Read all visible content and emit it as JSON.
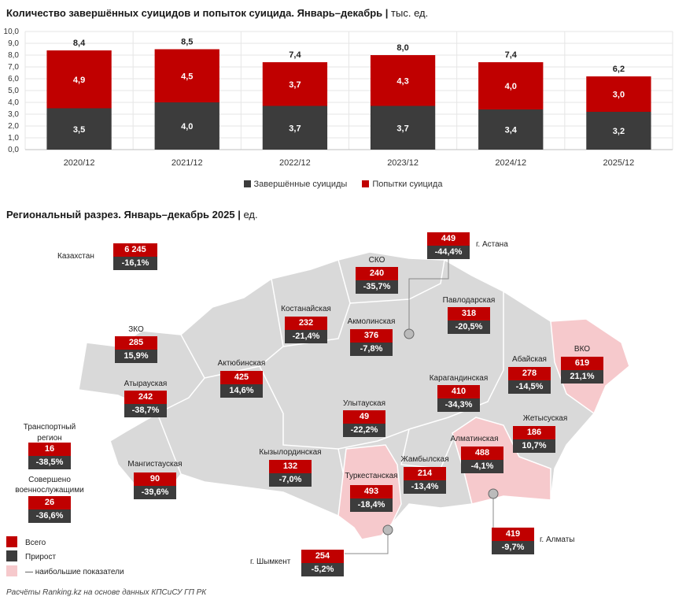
{
  "title1": "Количество завершённых суицидов и попыток суицида. Январь–декабрь",
  "title1_unit": "тыс. ед.",
  "title2": "Региональный разрез. Январь–декабрь 2025",
  "title2_unit": "ед.",
  "chart_data": {
    "type": "bar",
    "stacked": true,
    "categories": [
      "2020/12",
      "2021/12",
      "2022/12",
      "2023/12",
      "2024/12",
      "2025/12"
    ],
    "series": [
      {
        "name": "Завершённые суициды",
        "values": [
          3.5,
          4.0,
          3.7,
          3.7,
          3.4,
          3.2
        ],
        "color": "#3c3c3c"
      },
      {
        "name": "Попытки суицида",
        "values": [
          4.9,
          4.5,
          3.7,
          4.3,
          4.0,
          3.0
        ],
        "color": "#c00000"
      }
    ],
    "totals": [
      "8,4",
      "8,5",
      "7,4",
      "8,0",
      "7,4",
      "6,2"
    ],
    "ylim": [
      0,
      10
    ],
    "yticks": [
      "0,0",
      "1,0",
      "2,0",
      "3,0",
      "4,0",
      "5,0",
      "6,0",
      "7,0",
      "8,0",
      "9,0",
      "10,0"
    ],
    "grid": true,
    "legend_position": "bottom"
  },
  "regions": {
    "kazakhstan": {
      "name": "Казахстан",
      "total": "6 245",
      "growth": "-16,1%"
    },
    "zko": {
      "name": "ЗКО",
      "total": "285",
      "growth": "15,9%"
    },
    "atyrau": {
      "name": "Атырауская",
      "total": "242",
      "growth": "-38,7%"
    },
    "transport": {
      "name": "Транспортный регион",
      "total": "16",
      "growth": "-38,5%"
    },
    "military": {
      "name": "Совершено военнослужащими",
      "total": "26",
      "growth": "-36,6%"
    },
    "mangystau": {
      "name": "Мангистауская",
      "total": "90",
      "growth": "-39,6%"
    },
    "aktobe": {
      "name": "Актюбинская",
      "total": "425",
      "growth": "14,6%"
    },
    "kostanay": {
      "name": "Костанайская",
      "total": "232",
      "growth": "-21,4%"
    },
    "sko": {
      "name": "СКО",
      "total": "240",
      "growth": "-35,7%"
    },
    "akmola": {
      "name": "Акмолинская",
      "total": "376",
      "growth": "-7,8%"
    },
    "astana": {
      "name": "г. Астана",
      "total": "449",
      "growth": "-44,4%"
    },
    "pavlodar": {
      "name": "Павлодарская",
      "total": "318",
      "growth": "-20,5%"
    },
    "abay": {
      "name": "Абайская",
      "total": "278",
      "growth": "-14,5%"
    },
    "vko": {
      "name": "ВКО",
      "total": "619",
      "growth": "21,1%"
    },
    "karaganda": {
      "name": "Карагандинская",
      "total": "410",
      "growth": "-34,3%"
    },
    "ulytau": {
      "name": "Улытауская",
      "total": "49",
      "growth": "-22,2%"
    },
    "kyzylorda": {
      "name": "Кызылординская",
      "total": "132",
      "growth": "-7,0%"
    },
    "turkestan": {
      "name": "Туркестанская",
      "total": "493",
      "growth": "-18,4%"
    },
    "zhambyl": {
      "name": "Жамбылская",
      "total": "214",
      "growth": "-13,4%"
    },
    "almaty_obl": {
      "name": "Алматинская",
      "total": "488",
      "growth": "-4,1%"
    },
    "zhetysu": {
      "name": "Жетысуская",
      "total": "186",
      "growth": "10,7%"
    },
    "almaty_city": {
      "name": "г. Алматы",
      "total": "419",
      "growth": "-9,7%"
    },
    "shymkent": {
      "name": "г. Шымкент",
      "total": "254",
      "growth": "-5,2%"
    }
  },
  "map_legend": {
    "total": "Всего",
    "growth": "Прирост",
    "highlight": "— наибольшие показатели"
  },
  "colors": {
    "total": "#c00000",
    "growth": "#3c3c3c",
    "highlight": "#f6c9cc",
    "region": "#d9d9d9"
  },
  "footer": "Расчёты Ranking.kz на основе данных КПСиСУ ГП РК"
}
